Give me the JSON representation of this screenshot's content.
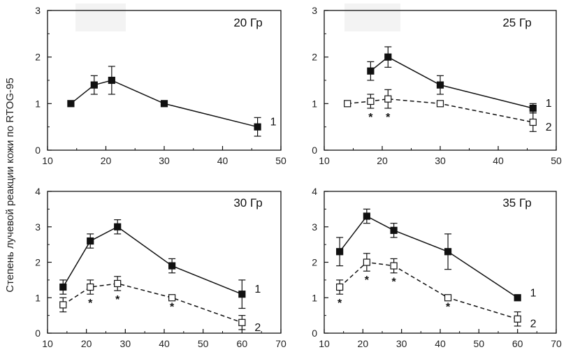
{
  "ylabel": "Степень лучевой реакции кожи по RTOG-95",
  "chart_data": [
    {
      "type": "line",
      "title": "20 Гр",
      "xlim": [
        10,
        50
      ],
      "xticks": [
        10,
        20,
        30,
        40,
        50
      ],
      "ylim": [
        0,
        3
      ],
      "yticks": [
        0,
        1,
        2,
        3
      ],
      "series": [
        {
          "name": "1",
          "style": "solid-filled",
          "x": [
            14,
            18,
            21,
            30,
            46
          ],
          "y": [
            1.0,
            1.4,
            1.5,
            1.0,
            0.5
          ],
          "err": [
            0,
            0.2,
            0.3,
            0,
            0.2
          ]
        }
      ],
      "significance_x": []
    },
    {
      "type": "line",
      "title": "25 Гр",
      "xlim": [
        10,
        50
      ],
      "xticks": [
        10,
        20,
        30,
        40,
        50
      ],
      "ylim": [
        0,
        3
      ],
      "yticks": [
        0,
        1,
        2,
        3
      ],
      "series": [
        {
          "name": "1",
          "style": "solid-filled",
          "x": [
            18,
            21,
            30,
            46
          ],
          "y": [
            1.7,
            2.0,
            1.4,
            0.9
          ],
          "err": [
            0.2,
            0.22,
            0.2,
            0.1
          ]
        },
        {
          "name": "2",
          "style": "dashed-open",
          "x": [
            14,
            18,
            21,
            30,
            46
          ],
          "y": [
            1.0,
            1.05,
            1.1,
            1.0,
            0.6
          ],
          "err": [
            0,
            0.15,
            0.2,
            0,
            0.2
          ]
        }
      ],
      "significance_x": [
        18,
        21
      ]
    },
    {
      "type": "line",
      "title": "30 Гр",
      "xlim": [
        10,
        70
      ],
      "xticks": [
        10,
        20,
        30,
        40,
        50,
        60,
        70
      ],
      "ylim": [
        0,
        4
      ],
      "yticks": [
        0,
        1,
        2,
        3,
        4
      ],
      "series": [
        {
          "name": "1",
          "style": "solid-filled",
          "x": [
            14,
            21,
            28,
            42,
            60
          ],
          "y": [
            1.3,
            2.6,
            3.0,
            1.9,
            1.1
          ],
          "err": [
            0.2,
            0.2,
            0.2,
            0.2,
            0.4
          ]
        },
        {
          "name": "2",
          "style": "dashed-open",
          "x": [
            14,
            21,
            28,
            42,
            60
          ],
          "y": [
            0.8,
            1.3,
            1.4,
            1.0,
            0.3
          ],
          "err": [
            0.2,
            0.2,
            0.2,
            0,
            0.2
          ]
        }
      ],
      "significance_x": [
        21,
        28,
        42
      ]
    },
    {
      "type": "line",
      "title": "35 Гр",
      "xlim": [
        10,
        70
      ],
      "xticks": [
        10,
        20,
        30,
        40,
        50,
        60,
        70
      ],
      "ylim": [
        0,
        4
      ],
      "yticks": [
        0,
        1,
        2,
        3,
        4
      ],
      "series": [
        {
          "name": "1",
          "style": "solid-filled",
          "x": [
            14,
            21,
            28,
            42,
            60
          ],
          "y": [
            2.3,
            3.3,
            2.9,
            2.3,
            1.0
          ],
          "err": [
            0.4,
            0.2,
            0.2,
            0.5,
            0
          ]
        },
        {
          "name": "2",
          "style": "dashed-open",
          "x": [
            14,
            21,
            28,
            42,
            60
          ],
          "y": [
            1.3,
            2.0,
            1.9,
            1.0,
            0.4
          ],
          "err": [
            0.2,
            0.25,
            0.2,
            0,
            0.2
          ]
        }
      ],
      "significance_x": [
        14,
        21,
        28,
        42
      ]
    }
  ],
  "star_symbol": "*"
}
